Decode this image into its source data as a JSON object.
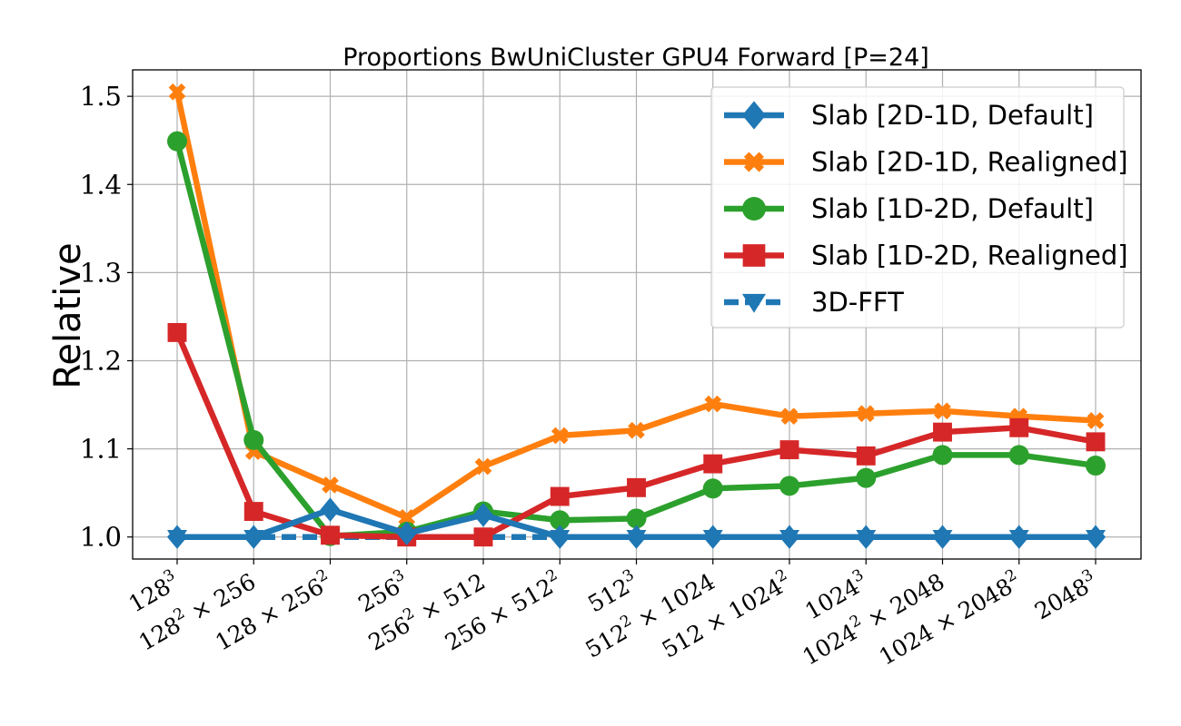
{
  "chart_data": {
    "type": "line",
    "title": "Proportions BwUniCluster GPU4 Forward [P=24]",
    "xlabel": "",
    "ylabel": "Relative",
    "ylim": [
      0.975,
      1.53
    ],
    "yticks": [
      "1.0",
      "1.1",
      "1.2",
      "1.3",
      "1.4",
      "1.5"
    ],
    "ytick_values": [
      1.0,
      1.1,
      1.2,
      1.3,
      1.4,
      1.5
    ],
    "grid": true,
    "legend_position": "top-right",
    "categories": [
      {
        "base": "128",
        "exp": "3",
        "tail": ""
      },
      {
        "base": "128",
        "exp": "2",
        "tail": " × 256"
      },
      {
        "base": "128 × 256",
        "exp": "2",
        "tail": ""
      },
      {
        "base": "256",
        "exp": "3",
        "tail": ""
      },
      {
        "base": "256",
        "exp": "2",
        "tail": " × 512"
      },
      {
        "base": "256 × 512",
        "exp": "2",
        "tail": ""
      },
      {
        "base": "512",
        "exp": "3",
        "tail": ""
      },
      {
        "base": "512",
        "exp": "2",
        "tail": " × 1024"
      },
      {
        "base": "512 × 1024",
        "exp": "2",
        "tail": ""
      },
      {
        "base": "1024",
        "exp": "3",
        "tail": ""
      },
      {
        "base": "1024",
        "exp": "2",
        "tail": " × 2048"
      },
      {
        "base": "1024 × 2048",
        "exp": "2",
        "tail": ""
      },
      {
        "base": "2048",
        "exp": "3",
        "tail": ""
      }
    ],
    "series": [
      {
        "name": "3D-FFT",
        "color": "#1f77b4",
        "marker": "triangle-down",
        "dashed": true,
        "values": [
          1.0,
          1.0,
          1.0,
          1.0,
          1.0,
          1.0,
          1.0,
          1.0,
          1.0,
          1.0,
          1.0,
          1.0,
          1.0
        ]
      },
      {
        "name": "Slab [2D-1D, Realigned]",
        "color": "#ff7f0e",
        "marker": "x",
        "dashed": false,
        "values": [
          1.505,
          1.097,
          1.059,
          1.022,
          1.08,
          1.115,
          1.121,
          1.151,
          1.137,
          1.14,
          1.143,
          1.137,
          1.132
        ]
      },
      {
        "name": "Slab [1D-2D, Default]",
        "color": "#2ca02c",
        "marker": "circle",
        "dashed": false,
        "values": [
          1.449,
          1.11,
          1.001,
          1.006,
          1.029,
          1.019,
          1.021,
          1.055,
          1.058,
          1.067,
          1.093,
          1.093,
          1.081
        ]
      },
      {
        "name": "Slab [1D-2D, Realigned]",
        "color": "#d62728",
        "marker": "square",
        "dashed": false,
        "values": [
          1.232,
          1.029,
          1.002,
          1.0,
          1.0,
          1.046,
          1.056,
          1.083,
          1.099,
          1.092,
          1.119,
          1.124,
          1.108
        ]
      },
      {
        "name": "Slab [2D-1D, Default]",
        "color": "#1f77b4",
        "marker": "diamond",
        "dashed": false,
        "values": [
          1.0,
          1.0,
          1.031,
          1.004,
          1.025,
          1.0,
          1.0,
          1.0,
          1.0,
          1.0,
          1.0,
          1.0,
          1.0
        ]
      }
    ],
    "legend_order": [
      4,
      1,
      2,
      3,
      0
    ]
  }
}
